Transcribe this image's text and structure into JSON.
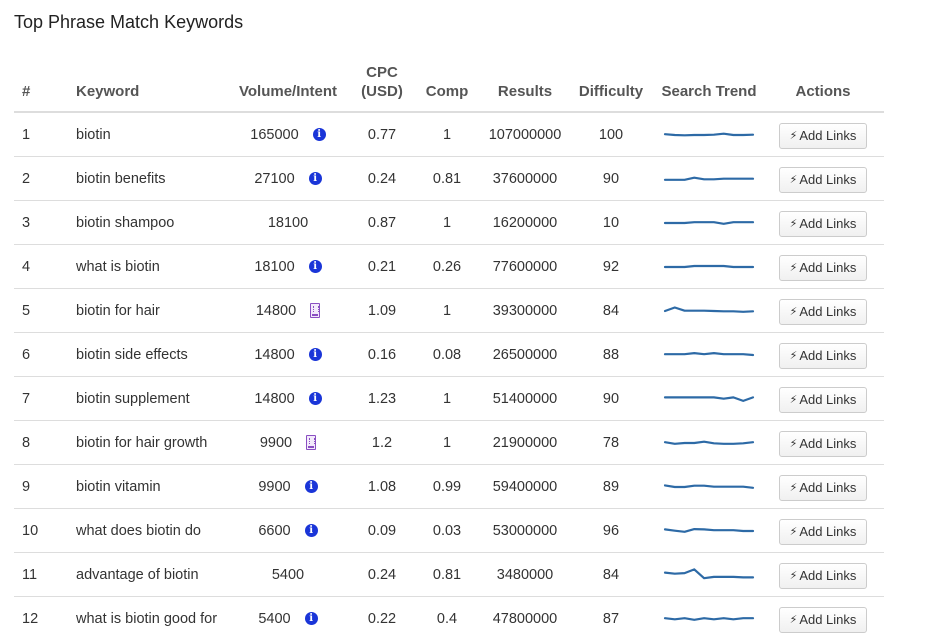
{
  "title": "Top Phrase Match Keywords",
  "columns": {
    "num": "#",
    "keyword": "Keyword",
    "volume": "Volume/Intent",
    "cpc_line1": "CPC",
    "cpc_line2": "(USD)",
    "comp": "Comp",
    "results": "Results",
    "difficulty": "Difficulty",
    "trend": "Search Trend",
    "actions": "Actions"
  },
  "button_label": "Add Links",
  "colors": {
    "trend_line": "#2d6aa6",
    "info_icon": "#1a35d8",
    "commercial_icon": "#8a4fc2"
  },
  "rows": [
    {
      "num": "1",
      "keyword": "biotin",
      "volume": "165000",
      "intent": "info",
      "cpc": "0.77",
      "comp": "1",
      "results": "107000000",
      "difficulty": "100",
      "trend": [
        0.55,
        0.5,
        0.48,
        0.5,
        0.5,
        0.52,
        0.58,
        0.5,
        0.5,
        0.52
      ]
    },
    {
      "num": "2",
      "keyword": "biotin benefits",
      "volume": "27100",
      "intent": "info",
      "cpc": "0.24",
      "comp": "0.81",
      "results": "37600000",
      "difficulty": "90",
      "trend": [
        0.45,
        0.45,
        0.45,
        0.58,
        0.48,
        0.48,
        0.52,
        0.52,
        0.52,
        0.52
      ]
    },
    {
      "num": "3",
      "keyword": "biotin shampoo",
      "volume": "18100",
      "intent": "none",
      "cpc": "0.87",
      "comp": "1",
      "results": "16200000",
      "difficulty": "10",
      "trend": [
        0.5,
        0.5,
        0.5,
        0.55,
        0.55,
        0.55,
        0.45,
        0.55,
        0.55,
        0.55
      ]
    },
    {
      "num": "4",
      "keyword": "what is biotin",
      "volume": "18100",
      "intent": "info",
      "cpc": "0.21",
      "comp": "0.26",
      "results": "77600000",
      "difficulty": "92",
      "trend": [
        0.5,
        0.5,
        0.5,
        0.56,
        0.56,
        0.56,
        0.56,
        0.5,
        0.5,
        0.5
      ]
    },
    {
      "num": "5",
      "keyword": "biotin for hair",
      "volume": "14800",
      "intent": "commercial",
      "cpc": "1.09",
      "comp": "1",
      "results": "39300000",
      "difficulty": "84",
      "trend": [
        0.5,
        0.72,
        0.52,
        0.52,
        0.52,
        0.5,
        0.48,
        0.48,
        0.45,
        0.48
      ]
    },
    {
      "num": "6",
      "keyword": "biotin side effects",
      "volume": "14800",
      "intent": "info",
      "cpc": "0.16",
      "comp": "0.08",
      "results": "26500000",
      "difficulty": "88",
      "trend": [
        0.55,
        0.55,
        0.55,
        0.62,
        0.55,
        0.62,
        0.55,
        0.55,
        0.55,
        0.5
      ]
    },
    {
      "num": "7",
      "keyword": "biotin supplement",
      "volume": "14800",
      "intent": "info",
      "cpc": "1.23",
      "comp": "1",
      "results": "51400000",
      "difficulty": "90",
      "trend": [
        0.6,
        0.6,
        0.6,
        0.6,
        0.6,
        0.6,
        0.52,
        0.6,
        0.38,
        0.6
      ]
    },
    {
      "num": "8",
      "keyword": "biotin for hair growth",
      "volume": "9900",
      "intent": "commercial",
      "cpc": "1.2",
      "comp": "1",
      "results": "21900000",
      "difficulty": "78",
      "trend": [
        0.55,
        0.45,
        0.5,
        0.5,
        0.58,
        0.48,
        0.45,
        0.45,
        0.48,
        0.55
      ]
    },
    {
      "num": "9",
      "keyword": "biotin vitamin",
      "volume": "9900",
      "intent": "info",
      "cpc": "1.08",
      "comp": "0.99",
      "results": "59400000",
      "difficulty": "89",
      "trend": [
        0.6,
        0.5,
        0.5,
        0.58,
        0.58,
        0.52,
        0.52,
        0.52,
        0.52,
        0.45
      ]
    },
    {
      "num": "10",
      "keyword": "what does biotin do",
      "volume": "6600",
      "intent": "info",
      "cpc": "0.09",
      "comp": "0.03",
      "results": "53000000",
      "difficulty": "96",
      "trend": [
        0.6,
        0.52,
        0.45,
        0.62,
        0.6,
        0.55,
        0.55,
        0.55,
        0.5,
        0.5
      ]
    },
    {
      "num": "11",
      "keyword": "advantage of biotin",
      "volume": "5400",
      "intent": "none",
      "cpc": "0.24",
      "comp": "0.81",
      "results": "3480000",
      "difficulty": "84",
      "trend": [
        0.65,
        0.58,
        0.62,
        0.85,
        0.3,
        0.38,
        0.38,
        0.38,
        0.35,
        0.35
      ]
    },
    {
      "num": "12",
      "keyword": "what is biotin good for",
      "volume": "5400",
      "intent": "info",
      "cpc": "0.22",
      "comp": "0.4",
      "results": "47800000",
      "difficulty": "87",
      "trend": [
        0.55,
        0.48,
        0.55,
        0.45,
        0.55,
        0.48,
        0.55,
        0.48,
        0.55,
        0.55
      ]
    }
  ]
}
